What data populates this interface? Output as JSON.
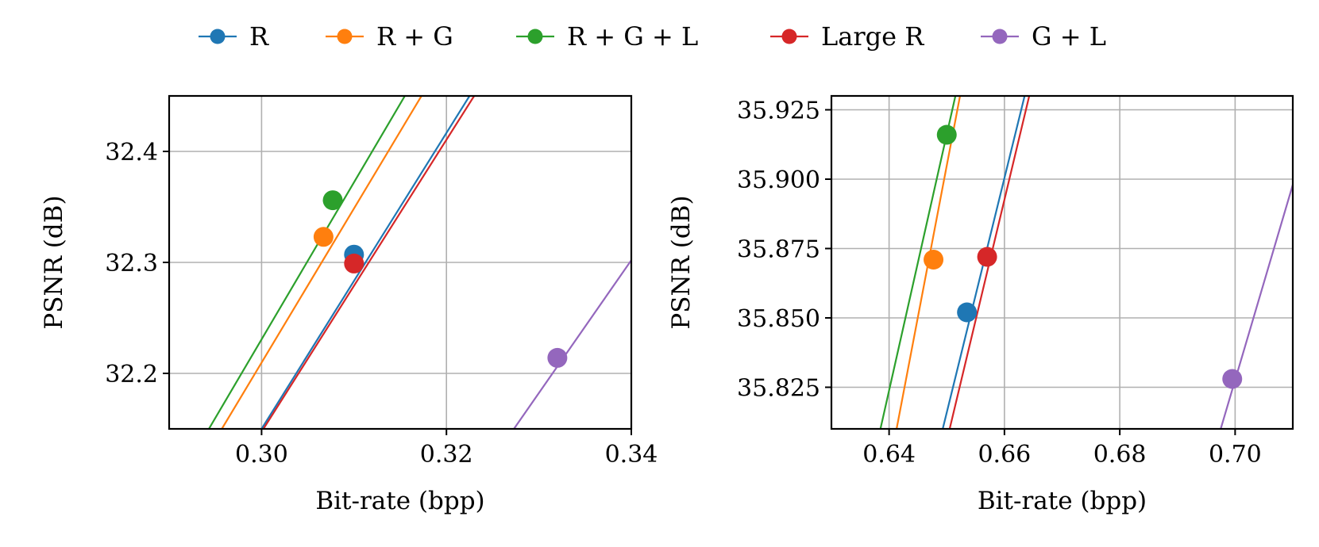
{
  "colors": {
    "R": "#1f77b4",
    "R + G": "#ff7f0e",
    "R + G + L": "#2ca02c",
    "Large R": "#d62728",
    "G + L": "#9467bd"
  },
  "legend": [
    "R",
    "R + G",
    "R + G + L",
    "Large R",
    "G + L"
  ],
  "chart_data": [
    {
      "type": "line",
      "xlabel": "Bit-rate (bpp)",
      "ylabel": "PSNR (dB)",
      "xlim": [
        0.29,
        0.34
      ],
      "ylim": [
        32.15,
        32.45
      ],
      "xticks": [
        0.3,
        0.32,
        0.34
      ],
      "xtick_labels": [
        "0.30",
        "0.32",
        "0.34"
      ],
      "yticks": [
        32.2,
        32.3,
        32.4
      ],
      "ytick_labels": [
        "32.2",
        "32.3",
        "32.4"
      ],
      "grid": true,
      "series": [
        {
          "name": "R",
          "x": [
            0.3,
            0.3225
          ],
          "y": [
            32.15,
            32.45
          ],
          "marker": [
            0.31,
            32.307
          ]
        },
        {
          "name": "R + G",
          "x": [
            0.2957,
            0.3173
          ],
          "y": [
            32.15,
            32.45
          ],
          "marker": [
            0.3067,
            32.323
          ]
        },
        {
          "name": "R + G + L",
          "x": [
            0.2943,
            0.3155
          ],
          "y": [
            32.15,
            32.45
          ],
          "marker": [
            0.3077,
            32.356
          ]
        },
        {
          "name": "Large R",
          "x": [
            0.3002,
            0.323
          ],
          "y": [
            32.15,
            32.45
          ],
          "marker": [
            0.31,
            32.299
          ]
        },
        {
          "name": "G + L",
          "x": [
            0.3273,
            0.34
          ],
          "y": [
            32.15,
            32.302
          ],
          "marker": [
            0.332,
            32.214
          ]
        }
      ]
    },
    {
      "type": "line",
      "xlabel": "Bit-rate (bpp)",
      "ylabel": "PSNR (dB)",
      "xlim": [
        0.63,
        0.71
      ],
      "ylim": [
        35.81,
        35.93
      ],
      "xticks": [
        0.64,
        0.66,
        0.68,
        0.7
      ],
      "xtick_labels": [
        "0.64",
        "0.66",
        "0.68",
        "0.70"
      ],
      "yticks": [
        35.825,
        35.85,
        35.875,
        35.9,
        35.925
      ],
      "ytick_labels": [
        "35.825",
        "35.850",
        "35.875",
        "35.900",
        "35.925"
      ],
      "grid": true,
      "series": [
        {
          "name": "R",
          "x": [
            0.6493,
            0.6635
          ],
          "y": [
            35.81,
            35.93
          ],
          "marker": [
            0.6535,
            35.852
          ]
        },
        {
          "name": "R + G",
          "x": [
            0.6413,
            0.6523
          ],
          "y": [
            35.81,
            35.93
          ],
          "marker": [
            0.6477,
            35.871
          ]
        },
        {
          "name": "R + G + L",
          "x": [
            0.6385,
            0.6515
          ],
          "y": [
            35.81,
            35.93
          ],
          "marker": [
            0.65,
            35.916
          ]
        },
        {
          "name": "Large R",
          "x": [
            0.6505,
            0.6643
          ],
          "y": [
            35.81,
            35.93
          ],
          "marker": [
            0.657,
            35.872
          ]
        },
        {
          "name": "G + L",
          "x": [
            0.6975,
            0.71
          ],
          "y": [
            35.81,
            35.898
          ],
          "marker": [
            0.6995,
            35.828
          ]
        }
      ]
    }
  ]
}
